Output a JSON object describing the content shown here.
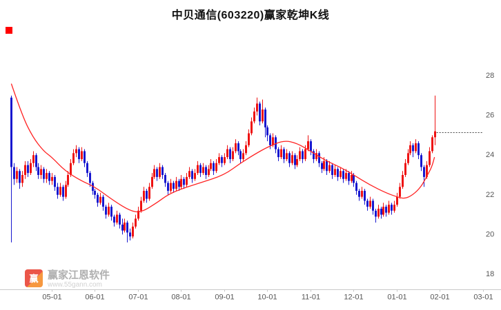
{
  "title": "中贝通信(603220)赢家乾坤K线",
  "watermark": {
    "brand": "赢家江恩软件",
    "url": "www.55gann.com",
    "logo_char": "赢"
  },
  "colors": {
    "up": "#ee1111",
    "down": "#1717cf",
    "ma": "#ff2222",
    "dotted": "#444444",
    "axis": "#c8c8c8",
    "tick_text": "#555555",
    "marker": "#ff0000"
  },
  "chart_data": {
    "type": "candlestick",
    "title": "中贝通信(603220)赢家乾坤K线",
    "xlabel": "",
    "ylabel": "",
    "ylim": [
      18,
      28
    ],
    "grid": false,
    "legend_position": "none",
    "y_ticks": [
      28,
      26,
      24,
      22,
      20,
      18
    ],
    "x_ticks": [
      {
        "label": "05-01",
        "i": 15
      },
      {
        "label": "06-01",
        "i": 31
      },
      {
        "label": "07-01",
        "i": 47
      },
      {
        "label": "08-01",
        "i": 63
      },
      {
        "label": "09-01",
        "i": 79
      },
      {
        "label": "10-01",
        "i": 95
      },
      {
        "label": "11-01",
        "i": 111
      },
      {
        "label": "12-01",
        "i": 127
      },
      {
        "label": "01-01",
        "i": 143
      },
      {
        "label": "02-01",
        "i": 159
      },
      {
        "label": "03-01",
        "i": 175
      }
    ],
    "last_price_line": 25.15,
    "candles": [
      [
        26.9,
        27.0,
        19.6,
        23.4
      ],
      [
        23.4,
        23.6,
        22.5,
        22.8
      ],
      [
        22.8,
        23.4,
        22.6,
        23.2
      ],
      [
        23.2,
        23.3,
        22.3,
        22.6
      ],
      [
        22.6,
        23.2,
        22.4,
        23.0
      ],
      [
        23.0,
        23.7,
        22.8,
        23.5
      ],
      [
        23.5,
        23.7,
        22.9,
        23.1
      ],
      [
        23.1,
        23.8,
        23.0,
        23.6
      ],
      [
        23.6,
        24.2,
        23.4,
        24.0
      ],
      [
        24.0,
        24.1,
        23.2,
        23.4
      ],
      [
        23.4,
        23.6,
        22.8,
        23.0
      ],
      [
        23.0,
        23.5,
        22.8,
        23.3
      ],
      [
        23.3,
        23.4,
        22.6,
        22.8
      ],
      [
        22.8,
        23.3,
        22.6,
        23.1
      ],
      [
        23.1,
        23.2,
        22.5,
        22.7
      ],
      [
        22.7,
        23.1,
        22.5,
        22.9
      ],
      [
        22.9,
        23.0,
        22.2,
        22.4
      ],
      [
        22.4,
        22.6,
        21.8,
        22.0
      ],
      [
        22.0,
        22.6,
        21.9,
        22.4
      ],
      [
        22.4,
        22.5,
        21.7,
        21.9
      ],
      [
        21.9,
        22.7,
        21.8,
        22.5
      ],
      [
        22.5,
        23.2,
        22.4,
        23.0
      ],
      [
        23.0,
        23.8,
        22.9,
        23.6
      ],
      [
        23.6,
        24.3,
        23.5,
        24.1
      ],
      [
        24.1,
        24.5,
        23.9,
        24.3
      ],
      [
        24.3,
        24.4,
        23.6,
        23.8
      ],
      [
        23.8,
        24.4,
        23.7,
        24.2
      ],
      [
        24.2,
        24.3,
        23.4,
        23.6
      ],
      [
        23.6,
        23.7,
        22.9,
        23.1
      ],
      [
        23.1,
        23.2,
        22.4,
        22.6
      ],
      [
        22.6,
        22.7,
        22.0,
        22.2
      ],
      [
        22.2,
        22.3,
        21.8,
        22.0
      ],
      [
        22.0,
        22.1,
        21.4,
        21.6
      ],
      [
        21.6,
        22.1,
        21.5,
        21.9
      ],
      [
        21.9,
        22.0,
        21.2,
        21.4
      ],
      [
        21.4,
        21.5,
        20.8,
        21.0
      ],
      [
        21.0,
        21.6,
        20.9,
        21.4
      ],
      [
        21.4,
        21.5,
        20.7,
        20.9
      ],
      [
        20.9,
        21.0,
        20.4,
        20.6
      ],
      [
        20.6,
        21.2,
        20.5,
        21.0
      ],
      [
        21.0,
        21.1,
        20.3,
        20.5
      ],
      [
        20.5,
        20.8,
        20.0,
        20.2
      ],
      [
        20.2,
        20.8,
        20.1,
        20.6
      ],
      [
        20.6,
        20.7,
        19.6,
        20.1
      ],
      [
        20.1,
        20.3,
        19.7,
        19.9
      ],
      [
        19.9,
        20.6,
        19.8,
        20.4
      ],
      [
        20.4,
        21.0,
        20.3,
        20.8
      ],
      [
        20.8,
        21.4,
        20.7,
        21.2
      ],
      [
        21.2,
        21.9,
        21.1,
        21.7
      ],
      [
        21.7,
        22.4,
        21.6,
        22.2
      ],
      [
        22.2,
        22.3,
        21.6,
        21.8
      ],
      [
        21.8,
        22.6,
        21.7,
        22.4
      ],
      [
        22.4,
        23.1,
        22.3,
        22.9
      ],
      [
        22.9,
        23.5,
        22.8,
        23.3
      ],
      [
        23.3,
        23.4,
        22.7,
        22.9
      ],
      [
        22.9,
        23.6,
        22.8,
        23.4
      ],
      [
        23.4,
        23.5,
        22.8,
        23.0
      ],
      [
        23.0,
        23.1,
        22.4,
        22.6
      ],
      [
        22.6,
        22.7,
        22.0,
        22.2
      ],
      [
        22.2,
        22.8,
        22.1,
        22.6
      ],
      [
        22.6,
        22.7,
        22.1,
        22.3
      ],
      [
        22.3,
        22.9,
        22.2,
        22.7
      ],
      [
        22.7,
        22.8,
        22.2,
        22.4
      ],
      [
        22.4,
        23.0,
        22.3,
        22.8
      ],
      [
        22.8,
        22.9,
        22.3,
        22.5
      ],
      [
        22.5,
        23.1,
        22.4,
        22.9
      ],
      [
        22.9,
        23.4,
        22.8,
        23.2
      ],
      [
        23.2,
        23.3,
        22.6,
        22.8
      ],
      [
        22.8,
        23.3,
        22.7,
        23.1
      ],
      [
        23.1,
        23.7,
        23.0,
        23.5
      ],
      [
        23.5,
        23.6,
        22.9,
        23.1
      ],
      [
        23.1,
        23.6,
        23.0,
        23.4
      ],
      [
        23.4,
        23.5,
        22.8,
        23.0
      ],
      [
        23.0,
        23.5,
        22.9,
        23.3
      ],
      [
        23.3,
        23.8,
        23.2,
        23.6
      ],
      [
        23.6,
        23.7,
        23.0,
        23.2
      ],
      [
        23.2,
        23.8,
        23.1,
        23.6
      ],
      [
        23.6,
        24.1,
        23.5,
        23.9
      ],
      [
        23.9,
        24.0,
        23.4,
        23.6
      ],
      [
        23.6,
        24.1,
        23.5,
        23.9
      ],
      [
        23.9,
        24.5,
        23.8,
        24.3
      ],
      [
        24.3,
        24.4,
        23.6,
        23.8
      ],
      [
        23.8,
        24.4,
        23.7,
        24.2
      ],
      [
        24.2,
        24.8,
        24.1,
        24.6
      ],
      [
        24.6,
        24.7,
        24.0,
        24.2
      ],
      [
        24.2,
        24.3,
        23.6,
        23.8
      ],
      [
        23.8,
        24.3,
        23.7,
        24.1
      ],
      [
        24.1,
        24.7,
        24.0,
        24.5
      ],
      [
        24.5,
        25.3,
        24.4,
        25.1
      ],
      [
        25.1,
        25.9,
        25.0,
        25.7
      ],
      [
        25.7,
        26.4,
        25.6,
        26.2
      ],
      [
        26.2,
        26.9,
        26.0,
        26.6
      ],
      [
        26.6,
        26.7,
        25.5,
        25.7
      ],
      [
        25.7,
        26.8,
        25.6,
        26.3
      ],
      [
        26.3,
        26.4,
        24.9,
        25.4
      ],
      [
        25.4,
        25.5,
        24.7,
        25.0
      ],
      [
        25.0,
        25.1,
        24.3,
        24.5
      ],
      [
        24.5,
        25.1,
        24.4,
        24.9
      ],
      [
        24.9,
        25.0,
        24.1,
        24.3
      ],
      [
        24.3,
        24.4,
        23.7,
        23.9
      ],
      [
        23.9,
        24.5,
        23.8,
        24.3
      ],
      [
        24.3,
        24.4,
        23.6,
        23.8
      ],
      [
        23.8,
        24.3,
        23.7,
        24.1
      ],
      [
        24.1,
        24.2,
        23.4,
        23.6
      ],
      [
        23.6,
        24.2,
        23.5,
        24.0
      ],
      [
        24.0,
        24.1,
        23.3,
        23.5
      ],
      [
        23.5,
        24.0,
        23.4,
        23.8
      ],
      [
        23.8,
        24.4,
        23.7,
        24.2
      ],
      [
        24.2,
        24.3,
        23.6,
        23.8
      ],
      [
        23.8,
        24.5,
        23.7,
        24.3
      ],
      [
        24.3,
        25.0,
        24.2,
        24.7
      ],
      [
        24.7,
        24.8,
        24.0,
        24.2
      ],
      [
        24.2,
        24.3,
        23.6,
        23.8
      ],
      [
        23.8,
        24.3,
        23.7,
        24.1
      ],
      [
        24.1,
        24.2,
        23.4,
        23.6
      ],
      [
        23.6,
        23.7,
        23.1,
        23.3
      ],
      [
        23.3,
        23.9,
        23.2,
        23.7
      ],
      [
        23.7,
        23.8,
        23.0,
        23.2
      ],
      [
        23.2,
        23.7,
        23.1,
        23.5
      ],
      [
        23.5,
        23.6,
        22.8,
        23.0
      ],
      [
        23.0,
        23.5,
        22.9,
        23.3
      ],
      [
        23.3,
        23.4,
        22.7,
        22.9
      ],
      [
        22.9,
        23.4,
        22.8,
        23.2
      ],
      [
        23.2,
        23.3,
        22.6,
        22.8
      ],
      [
        22.8,
        23.3,
        22.7,
        23.1
      ],
      [
        23.1,
        23.2,
        22.5,
        22.7
      ],
      [
        22.7,
        23.2,
        22.6,
        23.0
      ],
      [
        23.0,
        23.1,
        22.4,
        22.6
      ],
      [
        22.6,
        22.7,
        22.0,
        22.2
      ],
      [
        22.2,
        22.3,
        21.7,
        21.9
      ],
      [
        21.9,
        22.4,
        21.8,
        22.2
      ],
      [
        22.2,
        22.3,
        21.5,
        21.7
      ],
      [
        21.7,
        21.8,
        21.2,
        21.4
      ],
      [
        21.4,
        21.9,
        21.3,
        21.7
      ],
      [
        21.7,
        21.8,
        21.0,
        21.2
      ],
      [
        21.2,
        21.3,
        20.6,
        20.9
      ],
      [
        20.9,
        21.5,
        20.8,
        21.3
      ],
      [
        21.3,
        21.4,
        20.8,
        21.0
      ],
      [
        21.0,
        21.6,
        20.9,
        21.4
      ],
      [
        21.4,
        21.5,
        20.9,
        21.1
      ],
      [
        21.1,
        21.7,
        21.0,
        21.5
      ],
      [
        21.5,
        21.6,
        21.0,
        21.2
      ],
      [
        21.2,
        21.7,
        21.1,
        21.5
      ],
      [
        21.5,
        22.1,
        21.4,
        21.9
      ],
      [
        21.9,
        22.6,
        21.8,
        22.4
      ],
      [
        22.4,
        23.2,
        22.3,
        23.0
      ],
      [
        23.0,
        23.8,
        22.9,
        23.6
      ],
      [
        23.6,
        24.3,
        23.5,
        24.1
      ],
      [
        24.1,
        24.7,
        24.0,
        24.5
      ],
      [
        24.5,
        24.6,
        23.9,
        24.2
      ],
      [
        24.2,
        24.8,
        24.1,
        24.6
      ],
      [
        24.6,
        24.7,
        23.8,
        24.0
      ],
      [
        24.0,
        24.1,
        23.2,
        23.4
      ],
      [
        23.4,
        23.5,
        22.4,
        22.9
      ],
      [
        22.9,
        23.7,
        22.8,
        23.5
      ],
      [
        23.5,
        24.4,
        23.4,
        24.2
      ],
      [
        24.2,
        25.0,
        24.1,
        24.9
      ],
      [
        24.9,
        27.0,
        24.5,
        25.2
      ]
    ],
    "ma_line": {
      "points": [
        [
          0,
          27.6
        ],
        [
          4,
          26.0
        ],
        [
          8,
          24.9
        ],
        [
          12,
          24.2
        ],
        [
          15,
          23.9
        ],
        [
          20,
          23.2
        ],
        [
          26,
          22.7
        ],
        [
          31,
          22.4
        ],
        [
          38,
          21.7
        ],
        [
          44,
          21.2
        ],
        [
          48,
          21.1
        ],
        [
          54,
          21.6
        ],
        [
          58,
          22.0
        ],
        [
          63,
          22.3
        ],
        [
          70,
          22.6
        ],
        [
          79,
          23.0
        ],
        [
          85,
          23.6
        ],
        [
          91,
          24.1
        ],
        [
          95,
          24.4
        ],
        [
          101,
          24.75
        ],
        [
          106,
          24.6
        ],
        [
          111,
          24.2
        ],
        [
          117,
          23.7
        ],
        [
          122,
          23.4
        ],
        [
          127,
          23.0
        ],
        [
          133,
          22.5
        ],
        [
          139,
          22.1
        ],
        [
          143,
          21.9
        ],
        [
          146,
          21.8
        ],
        [
          149,
          22.0
        ],
        [
          152,
          22.4
        ],
        [
          154,
          22.9
        ],
        [
          156,
          23.4
        ],
        [
          157,
          23.9
        ]
      ]
    }
  }
}
